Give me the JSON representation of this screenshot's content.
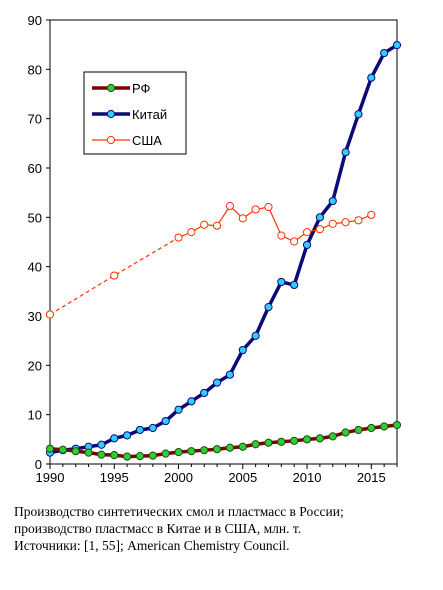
{
  "chart_data": {
    "type": "line",
    "xlim": [
      1990,
      2017
    ],
    "ylim": [
      0,
      90
    ],
    "x_ticks": [
      1990,
      1995,
      2000,
      2005,
      2010,
      2015
    ],
    "y_ticks": [
      0,
      10,
      20,
      30,
      40,
      50,
      60,
      70,
      80,
      90
    ],
    "grid": false,
    "legend_position": "top-left",
    "series": [
      {
        "name": "РФ",
        "color": "#7f0000",
        "marker_color": "#33cc33",
        "x": [
          1990,
          1991,
          1992,
          1993,
          1994,
          1995,
          1996,
          1997,
          1998,
          1999,
          2000,
          2001,
          2002,
          2003,
          2004,
          2005,
          2006,
          2007,
          2008,
          2009,
          2010,
          2011,
          2012,
          2013,
          2014,
          2015,
          2016,
          2017
        ],
        "y": [
          3.1,
          2.9,
          2.6,
          2.3,
          1.9,
          1.8,
          1.5,
          1.6,
          1.7,
          2.1,
          2.4,
          2.6,
          2.8,
          3.0,
          3.3,
          3.5,
          4.0,
          4.3,
          4.5,
          4.7,
          5.0,
          5.2,
          5.6,
          6.4,
          6.9,
          7.3,
          7.6,
          7.9
        ]
      },
      {
        "name": "Китай",
        "color": "#0a0a78",
        "marker_color": "#33ccff",
        "x": [
          1990,
          1991,
          1992,
          1993,
          1994,
          1995,
          1996,
          1997,
          1998,
          1999,
          2000,
          2001,
          2002,
          2003,
          2004,
          2005,
          2006,
          2007,
          2008,
          2009,
          2010,
          2011,
          2012,
          2013,
          2014,
          2015,
          2016,
          2017
        ],
        "y": [
          2.3,
          2.8,
          3.1,
          3.5,
          3.9,
          5.2,
          5.8,
          6.9,
          7.3,
          8.7,
          11.0,
          12.7,
          14.4,
          16.5,
          18.1,
          23.1,
          26.0,
          31.8,
          36.9,
          36.3,
          44.4,
          50.0,
          53.3,
          63.2,
          70.9,
          78.3,
          83.3,
          84.9
        ]
      },
      {
        "name": "США",
        "color": "#ff3300",
        "marker_color": "#ffffff",
        "dashed_segment_x": [
          1990,
          2000
        ],
        "x": [
          1990,
          1995,
          2000,
          2001,
          2002,
          2003,
          2004,
          2005,
          2006,
          2007,
          2008,
          2009,
          2010,
          2011,
          2012,
          2013,
          2014,
          2015
        ],
        "y": [
          30.3,
          38.2,
          45.9,
          47.0,
          48.5,
          48.3,
          52.3,
          49.8,
          51.6,
          52.1,
          46.3,
          45.1,
          47.0,
          47.6,
          48.7,
          49.0,
          49.4,
          50.5
        ]
      }
    ]
  },
  "caption": {
    "line1": "Производство синтетических смол и пластмасс в России;",
    "line2": "производство пластмасс в Китае и в США, млн. т.",
    "line3": "Источники: [1, 55]; American Chemistry Council."
  }
}
